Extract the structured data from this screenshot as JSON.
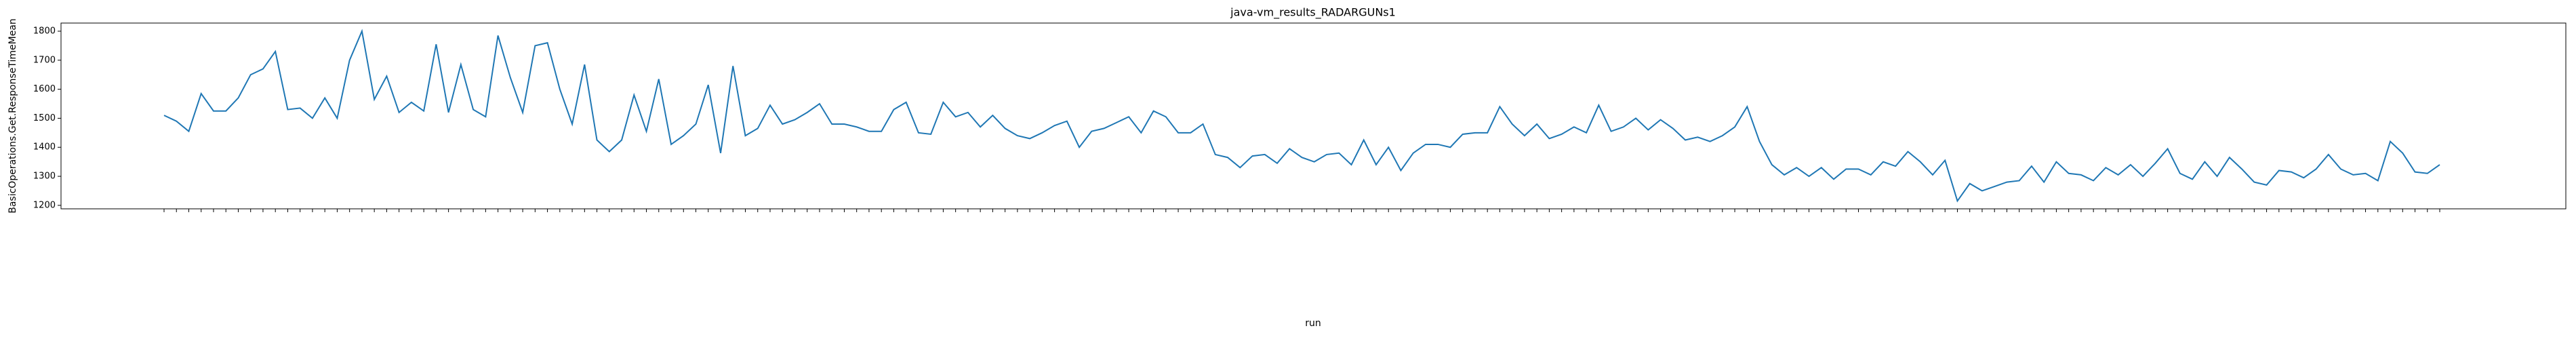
{
  "chart_data": {
    "type": "line",
    "title": "java-vm_results_RADARGUNs1",
    "xlabel": "run",
    "ylabel": "BasicOperations.Get.ResponseTimeMean",
    "color": "#1f77b4",
    "categories": [
      null,
      null,
      null,
      null,
      null,
      null,
      null,
      null,
      null,
      null,
      null,
      null,
      null,
      null,
      null,
      null,
      null,
      null,
      null,
      null,
      null,
      null,
      null,
      null,
      null,
      null,
      null,
      null,
      null,
      null,
      null,
      null,
      null,
      null,
      null,
      null,
      null,
      null,
      null,
      null,
      null,
      null,
      null,
      null,
      null,
      null,
      null,
      null,
      null,
      null,
      null,
      null,
      null,
      null,
      null,
      null,
      null,
      null,
      null,
      null,
      null,
      null,
      null,
      null,
      null,
      null,
      null,
      null,
      null,
      null,
      null,
      null,
      null,
      null,
      null,
      null,
      null,
      null,
      null,
      null,
      null,
      null,
      null,
      null,
      null,
      null,
      null,
      null,
      null,
      null,
      null,
      null,
      null,
      null,
      null,
      null,
      null,
      null,
      null,
      null,
      null,
      null,
      null,
      null,
      null,
      null,
      null,
      null,
      null,
      null,
      null,
      null,
      null,
      null,
      null,
      null,
      null,
      null,
      null,
      null,
      null,
      null,
      null,
      null,
      null,
      null,
      null,
      null,
      null,
      null,
      null,
      null,
      null,
      null,
      null,
      null,
      null,
      null,
      null,
      null,
      null,
      null,
      null,
      null,
      null,
      null,
      null,
      null,
      null,
      null,
      null,
      null,
      null,
      null,
      null,
      null,
      null,
      null,
      null,
      null,
      null,
      null,
      null,
      null,
      null,
      null,
      null,
      null,
      null,
      null,
      null,
      null,
      null,
      null,
      null,
      null,
      null,
      null,
      null,
      null,
      null,
      null,
      null,
      null,
      null
    ],
    "values": [
      1510,
      1490,
      1455,
      1585,
      1525,
      1525,
      1570,
      1650,
      1670,
      1730,
      1530,
      1535,
      1500,
      1570,
      1500,
      1700,
      1800,
      1565,
      1645,
      1520,
      1555,
      1525,
      1755,
      1520,
      1685,
      1530,
      1505,
      1785,
      1640,
      1520,
      1750,
      1760,
      1600,
      1480,
      1685,
      1425,
      1385,
      1425,
      1580,
      1455,
      1635,
      1410,
      1440,
      1480,
      1615,
      1380,
      1680,
      1440,
      1465,
      1545,
      1480,
      1495,
      1520,
      1550,
      1480,
      1480,
      1470,
      1455,
      1455,
      1530,
      1555,
      1450,
      1445,
      1555,
      1505,
      1520,
      1470,
      1510,
      1465,
      1440,
      1430,
      1450,
      1475,
      1490,
      1400,
      1455,
      1465,
      1485,
      1505,
      1450,
      1525,
      1505,
      1450,
      1450,
      1480,
      1375,
      1365,
      1330,
      1370,
      1375,
      1345,
      1395,
      1365,
      1350,
      1375,
      1380,
      1340,
      1425,
      1340,
      1400,
      1320,
      1380,
      1410,
      1410,
      1400,
      1445,
      1450,
      1450,
      1540,
      1480,
      1440,
      1480,
      1430,
      1445,
      1470,
      1450,
      1545,
      1455,
      1470,
      1500,
      1460,
      1495,
      1465,
      1425,
      1435,
      1420,
      1440,
      1470,
      1540,
      1420,
      1340,
      1305,
      1330,
      1300,
      1330,
      1290,
      1325,
      1325,
      1305,
      1350,
      1335,
      1385,
      1350,
      1305,
      1355,
      1215,
      1275,
      1250,
      1265,
      1280,
      1285,
      1335,
      1280,
      1350,
      1310,
      1305,
      1285,
      1330,
      1305,
      1340,
      1300,
      1345,
      1395,
      1310,
      1290,
      1350,
      1300,
      1365,
      1325,
      1280,
      1270,
      1320,
      1315,
      1295,
      1325,
      1375,
      1325,
      1305,
      1310,
      1285,
      1420,
      1380,
      1315,
      1310,
      1340
    ],
    "ylim": [
      1188,
      1828
    ],
    "yticks": [
      1200,
      1300,
      1400,
      1500,
      1600,
      1700,
      1800
    ]
  }
}
